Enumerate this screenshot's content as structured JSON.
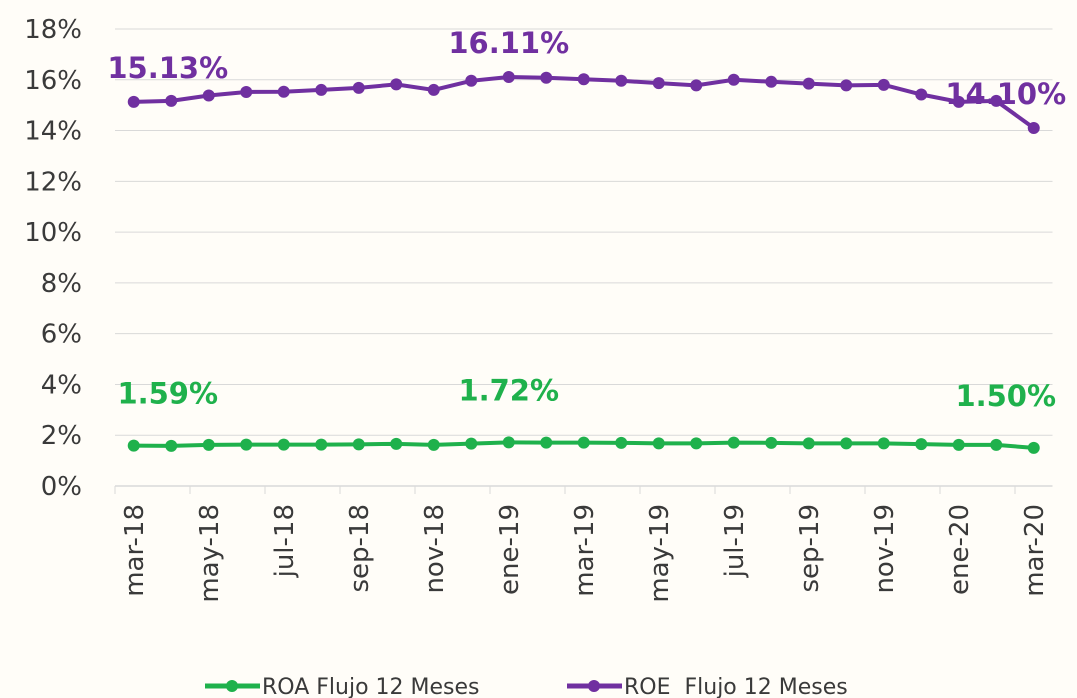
{
  "chart_data": {
    "type": "line",
    "categories": [
      "mar-18",
      null,
      "may-18",
      null,
      "jul-18",
      null,
      "sep-18",
      null,
      "nov-18",
      null,
      "ene-19",
      null,
      "mar-19",
      null,
      "may-19",
      null,
      "jul-19",
      null,
      "sep-19",
      null,
      "nov-19",
      null,
      "ene-20",
      null,
      "mar-20"
    ],
    "series": [
      {
        "name": "ROA Flujo 12 Meses",
        "color": "#1fb14c",
        "values": [
          1.59,
          1.58,
          1.62,
          1.63,
          1.63,
          1.63,
          1.64,
          1.66,
          1.62,
          1.67,
          1.72,
          1.71,
          1.71,
          1.7,
          1.68,
          1.68,
          1.71,
          1.7,
          1.68,
          1.68,
          1.68,
          1.65,
          1.62,
          1.62,
          1.5
        ],
        "value_labels": [
          "1.59%",
          null,
          null,
          null,
          null,
          null,
          null,
          null,
          null,
          null,
          "1.72%",
          null,
          null,
          null,
          null,
          null,
          null,
          null,
          null,
          null,
          null,
          null,
          null,
          null,
          "1.50%"
        ]
      },
      {
        "name": "ROE  Flujo 12 Meses",
        "color": "#7030a0",
        "values": [
          15.13,
          15.17,
          15.38,
          15.52,
          15.53,
          15.6,
          15.68,
          15.82,
          15.6,
          15.96,
          16.11,
          16.08,
          16.02,
          15.96,
          15.87,
          15.78,
          16.0,
          15.92,
          15.85,
          15.78,
          15.8,
          15.42,
          15.13,
          15.17,
          14.1
        ],
        "value_labels": [
          "15.13%",
          null,
          null,
          null,
          null,
          null,
          null,
          null,
          null,
          null,
          "16.11%",
          null,
          null,
          null,
          null,
          null,
          null,
          null,
          null,
          null,
          null,
          null,
          null,
          null,
          "14.10%"
        ]
      }
    ],
    "ylim": [
      0,
      18
    ],
    "yticks": [
      {
        "value": 0,
        "label": "0%"
      },
      {
        "value": 2,
        "label": "2%"
      },
      {
        "value": 4,
        "label": "4%"
      },
      {
        "value": 6,
        "label": "6%"
      },
      {
        "value": 8,
        "label": "8%"
      },
      {
        "value": 10,
        "label": "10%"
      },
      {
        "value": 12,
        "label": "12%"
      },
      {
        "value": 14,
        "label": "14%"
      },
      {
        "value": 16,
        "label": "16%"
      },
      {
        "value": 18,
        "label": "18%"
      }
    ],
    "grid": true
  }
}
